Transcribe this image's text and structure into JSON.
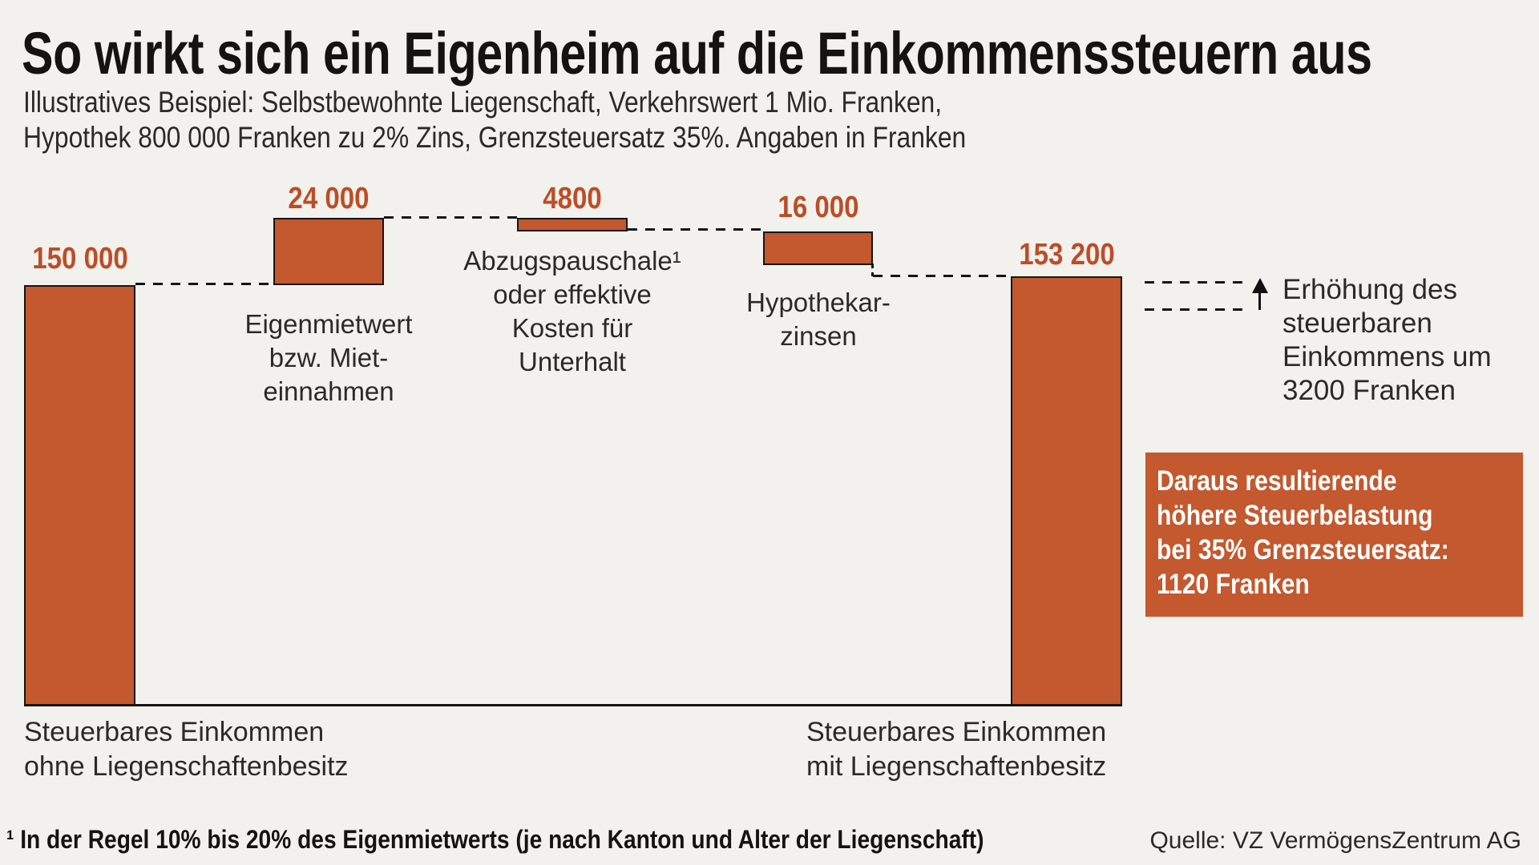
{
  "header": {
    "title": "So wirkt sich ein Eigenheim auf die Einkommenssteuern aus",
    "subtitle_lines": [
      "Illustratives Beispiel: Selbstbewohnte Liegenschaft, Verkehrswert 1 Mio. Franken,",
      "Hypothek 800 000 Franken zu 2% Zins, Grenzsteuersatz 35%. Angaben in Franken"
    ]
  },
  "chart_data": {
    "type": "bar",
    "subtype": "waterfall",
    "unit": "Franken",
    "grid": false,
    "bars": [
      {
        "name": "steuerbares-einkommen-ohne",
        "value": 150000,
        "display": "150 000",
        "kind": "total",
        "label_lines": []
      },
      {
        "name": "eigenmietwert",
        "value": 24000,
        "display": "24 000",
        "kind": "increase",
        "label_lines": [
          "Eigenmietwert",
          "bzw. Miet-",
          "einnahmen"
        ]
      },
      {
        "name": "abzugspauschale",
        "value": -4800,
        "display": "4800",
        "kind": "decrease",
        "label_lines": [
          "Abzugspauschale¹",
          "oder effektive",
          "Kosten für",
          "Unterhalt"
        ]
      },
      {
        "name": "hypothekarzinsen",
        "value": -16000,
        "display": "16 000",
        "kind": "decrease",
        "label_lines": [
          "Hypothekar-",
          "zinsen"
        ]
      },
      {
        "name": "steuerbares-einkommen-mit",
        "value": 153200,
        "display": "153 200",
        "kind": "total",
        "label_lines": []
      }
    ],
    "running_totals": [
      150000,
      174000,
      169200,
      153200,
      153200
    ],
    "axis_labels": [
      {
        "lines": [
          "Steuerbares Einkommen",
          "ohne Liegenschaftenbesitz"
        ]
      },
      {
        "lines": [
          "Steuerbares Einkommen",
          "mit Liegenschaftenbesitz"
        ]
      }
    ]
  },
  "annotation": {
    "lines": [
      "Erhöhung des",
      "steuerbaren",
      "Einkommens um",
      "3200 Franken"
    ],
    "arrow_icon": "up-arrow"
  },
  "callout": {
    "lines": [
      "Daraus resultierende",
      "höhere Steuerbelastung",
      "bei 35% Grenzsteuersatz:",
      "1120 Franken"
    ]
  },
  "footnote": "¹ In der Regel 10% bis 20% des Eigenmietwerts (je nach Kanton und Alter der Liegenschaft)",
  "source": "Quelle: VZ VermögensZentrum AG",
  "colors": {
    "accent": "#c4582e",
    "value_text": "#bb4e27",
    "ink": "#161514",
    "text": "#2b2a28",
    "background": "#f2f1ee",
    "callout_text": "#ffffff"
  }
}
